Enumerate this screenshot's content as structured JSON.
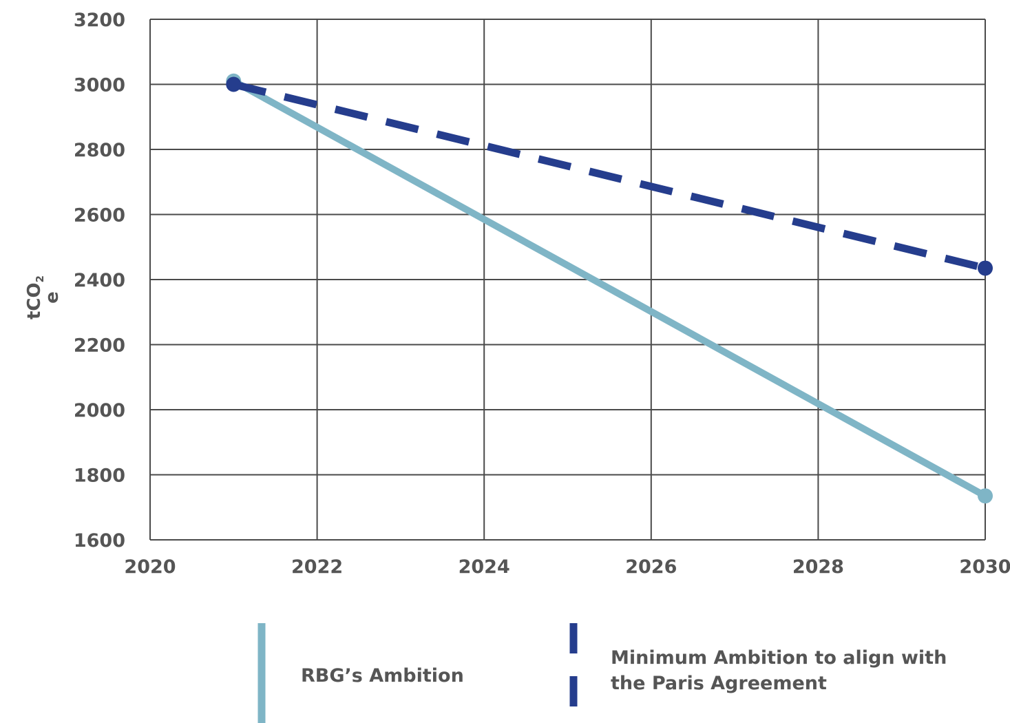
{
  "chart_data": {
    "type": "line",
    "x": [
      2021,
      2030
    ],
    "series": [
      {
        "name": "RBG’s Ambition",
        "x": [
          2021,
          2030
        ],
        "values": [
          3010,
          1735
        ],
        "color": "#7fb5c6",
        "style": "solid"
      },
      {
        "name": "Minimum Ambition to align with the Paris Agreement",
        "x": [
          2021,
          2030
        ],
        "values": [
          3000,
          2435
        ],
        "color": "#253d8d",
        "style": "dashed"
      }
    ],
    "xlim": [
      2020,
      2030
    ],
    "ylim": [
      1600,
      3200
    ],
    "xticks": [
      "2020",
      "2022",
      "2024",
      "2026",
      "2028",
      "2030"
    ],
    "yticks": [
      "3200",
      "3000",
      "2800",
      "2600",
      "2400",
      "2200",
      "2000",
      "1800",
      "1600"
    ],
    "ylabel_main": "tCO",
    "ylabel_sub": "2",
    "ylabel_tail": "e",
    "grid": true,
    "legend_position": "bottom"
  },
  "legend": {
    "rbg_label": "RBG’s Ambition",
    "paris_label_line1": "Minimum Ambition to align with",
    "paris_label_line2": "the Paris Agreement"
  }
}
